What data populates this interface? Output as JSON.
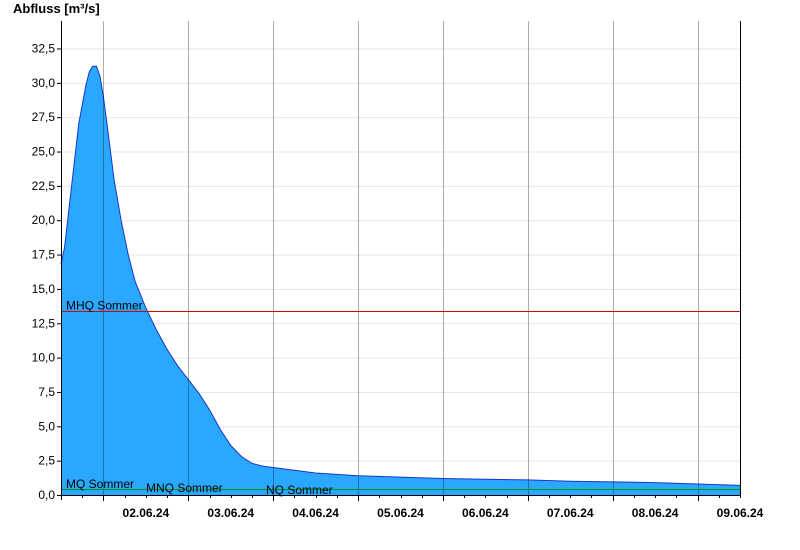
{
  "chart_data": {
    "type": "area",
    "title": "",
    "xlabel": "",
    "ylabel": "Abfluss [m³/s]",
    "ylim": [
      0,
      34.5
    ],
    "xlim": [
      "2024-06-01 12:00",
      "2024-06-09 12:00"
    ],
    "grid": true,
    "legend": "none",
    "colors": {
      "fill": "#2aa8ff",
      "outline": "#1a37c8",
      "mhq": "#cc0000",
      "low": "#009900",
      "grid": "#e6e6e6"
    },
    "yticks": [
      "0,0",
      "2,5",
      "5,0",
      "7,5",
      "10,0",
      "12,5",
      "15,0",
      "17,5",
      "20,0",
      "22,5",
      "25,0",
      "27,5",
      "30,0",
      "32,5"
    ],
    "ytick_values": [
      0,
      2.5,
      5,
      7.5,
      10,
      12.5,
      15,
      17.5,
      20,
      22.5,
      25,
      27.5,
      30,
      32.5
    ],
    "xticks": [
      "02.06.24",
      "03.06.24",
      "04.06.24",
      "05.06.24",
      "06.06.24",
      "07.06.24",
      "08.06.24",
      "09.06.24"
    ],
    "xtick_dates": [
      "2024-06-02",
      "2024-06-03",
      "2024-06-04",
      "2024-06-05",
      "2024-06-06",
      "2024-06-07",
      "2024-06-08",
      "2024-06-09"
    ],
    "series": [
      {
        "x": [
          "2024-06-01 12:00",
          "2024-06-01 13:00",
          "2024-06-01 15:00",
          "2024-06-01 17:00",
          "2024-06-01 19:00",
          "2024-06-01 20:00",
          "2024-06-01 21:00",
          "2024-06-01 22:00",
          "2024-06-01 23:00",
          "2024-06-02 00:00",
          "2024-06-02 01:00",
          "2024-06-02 02:00",
          "2024-06-02 03:00",
          "2024-06-02 05:00",
          "2024-06-02 07:00",
          "2024-06-02 09:00",
          "2024-06-02 12:00",
          "2024-06-02 15:00",
          "2024-06-02 18:00",
          "2024-06-02 21:00",
          "2024-06-03 00:00",
          "2024-06-03 03:00",
          "2024-06-03 06:00",
          "2024-06-03 09:00",
          "2024-06-03 12:00",
          "2024-06-03 15:00",
          "2024-06-03 18:00",
          "2024-06-03 21:00",
          "2024-06-04 00:00",
          "2024-06-04 03:00",
          "2024-06-04 06:00",
          "2024-06-04 09:00",
          "2024-06-04 12:00",
          "2024-06-04 18:00",
          "2024-06-05 00:00",
          "2024-06-05 12:00",
          "2024-06-06 00:00",
          "2024-06-06 12:00",
          "2024-06-07 00:00",
          "2024-06-07 12:00",
          "2024-06-08 00:00",
          "2024-06-08 12:00",
          "2024-06-09 00:00",
          "2024-06-09 12:00"
        ],
        "values": [
          16.8,
          18.0,
          22.5,
          27.0,
          29.8,
          30.8,
          31.2,
          31.2,
          30.5,
          29.0,
          27.0,
          25.0,
          23.0,
          20.0,
          17.5,
          15.5,
          13.6,
          12.0,
          10.6,
          9.4,
          8.4,
          7.4,
          6.2,
          4.8,
          3.6,
          2.8,
          2.3,
          2.1,
          2.0,
          1.9,
          1.8,
          1.7,
          1.6,
          1.5,
          1.4,
          1.3,
          1.2,
          1.15,
          1.1,
          1.0,
          0.95,
          0.9,
          0.8,
          0.7
        ]
      }
    ],
    "reference_lines": [
      {
        "name": "MHQ Sommer",
        "value": 13.4
      },
      {
        "name": "MQ Sommer",
        "value": 0.45
      },
      {
        "name": "MNQ Sommer",
        "value": 0.35
      },
      {
        "name": "NQ Sommer",
        "value": 0.45
      }
    ]
  }
}
